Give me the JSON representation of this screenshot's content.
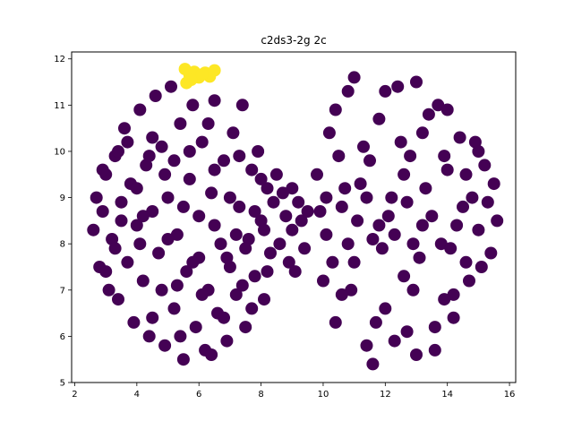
{
  "chart_data": {
    "type": "scatter",
    "title": "c2ds3-2g 2c",
    "xlabel": "",
    "ylabel": "",
    "xlim": [
      1.9,
      16.2
    ],
    "ylim": [
      5.0,
      12.15
    ],
    "xticks": [
      2,
      4,
      6,
      8,
      10,
      12,
      14,
      16
    ],
    "yticks": [
      5,
      6,
      7,
      8,
      9,
      10,
      11,
      12
    ],
    "grid": false,
    "legend": "none",
    "series": [
      {
        "color": "#440154",
        "points": [
          [
            2.6,
            8.3
          ],
          [
            2.7,
            9.0
          ],
          [
            2.8,
            7.5
          ],
          [
            2.9,
            8.7
          ],
          [
            3.0,
            9.5
          ],
          [
            3.1,
            7.0
          ],
          [
            3.2,
            8.1
          ],
          [
            3.3,
            9.9
          ],
          [
            3.4,
            6.8
          ],
          [
            3.5,
            8.9
          ],
          [
            3.6,
            10.5
          ],
          [
            3.7,
            7.6
          ],
          [
            3.8,
            9.3
          ],
          [
            3.9,
            6.3
          ],
          [
            4.0,
            8.4
          ],
          [
            4.1,
            10.9
          ],
          [
            4.2,
            7.2
          ],
          [
            4.3,
            9.7
          ],
          [
            4.4,
            6.0
          ],
          [
            4.5,
            8.7
          ],
          [
            4.6,
            11.2
          ],
          [
            4.7,
            7.8
          ],
          [
            4.8,
            10.1
          ],
          [
            4.9,
            5.8
          ],
          [
            5.0,
            9.0
          ],
          [
            5.1,
            11.4
          ],
          [
            5.2,
            6.6
          ],
          [
            5.3,
            8.2
          ],
          [
            5.4,
            10.6
          ],
          [
            5.5,
            5.5
          ],
          [
            5.6,
            7.4
          ],
          [
            5.7,
            9.4
          ],
          [
            5.8,
            11.0
          ],
          [
            5.9,
            6.2
          ],
          [
            6.0,
            8.6
          ],
          [
            6.1,
            10.2
          ],
          [
            6.2,
            5.7
          ],
          [
            6.3,
            7.0
          ],
          [
            6.4,
            9.1
          ],
          [
            6.5,
            11.1
          ],
          [
            6.6,
            6.5
          ],
          [
            6.7,
            8.0
          ],
          [
            6.8,
            9.8
          ],
          [
            6.9,
            5.9
          ],
          [
            7.0,
            7.5
          ],
          [
            7.1,
            10.4
          ],
          [
            7.2,
            6.9
          ],
          [
            7.3,
            8.8
          ],
          [
            7.4,
            11.0
          ],
          [
            7.5,
            6.2
          ],
          [
            7.6,
            8.1
          ],
          [
            7.7,
            9.6
          ],
          [
            7.8,
            7.3
          ],
          [
            7.9,
            10.0
          ],
          [
            8.0,
            8.5
          ],
          [
            8.1,
            6.8
          ],
          [
            8.2,
            9.2
          ],
          [
            8.3,
            7.8
          ],
          [
            8.4,
            8.9
          ],
          [
            8.5,
            9.5
          ],
          [
            2.9,
            9.6
          ],
          [
            3.3,
            7.9
          ],
          [
            3.7,
            10.2
          ],
          [
            4.1,
            8.0
          ],
          [
            4.5,
            6.4
          ],
          [
            4.9,
            9.5
          ],
          [
            5.3,
            7.1
          ],
          [
            5.7,
            10.0
          ],
          [
            6.1,
            6.9
          ],
          [
            6.5,
            9.6
          ],
          [
            6.9,
            7.7
          ],
          [
            7.3,
            9.9
          ],
          [
            7.7,
            6.6
          ],
          [
            8.1,
            8.3
          ],
          [
            3.0,
            7.4
          ],
          [
            3.5,
            8.5
          ],
          [
            4.0,
            9.2
          ],
          [
            4.5,
            10.3
          ],
          [
            5.0,
            8.1
          ],
          [
            5.5,
            8.8
          ],
          [
            6.0,
            7.7
          ],
          [
            6.5,
            8.4
          ],
          [
            7.0,
            9.0
          ],
          [
            7.5,
            7.9
          ],
          [
            8.0,
            9.4
          ],
          [
            4.2,
            8.6
          ],
          [
            4.8,
            7.0
          ],
          [
            5.2,
            9.8
          ],
          [
            5.8,
            7.6
          ],
          [
            6.3,
            10.6
          ],
          [
            6.8,
            6.4
          ],
          [
            7.2,
            8.2
          ],
          [
            7.8,
            8.7
          ],
          [
            3.4,
            10.0
          ],
          [
            4.4,
            9.9
          ],
          [
            5.4,
            6.0
          ],
          [
            6.4,
            5.6
          ],
          [
            7.4,
            7.1
          ],
          [
            8.2,
            7.4
          ],
          [
            8.6,
            8.0
          ],
          [
            8.8,
            8.6
          ],
          [
            9.0,
            8.3
          ],
          [
            9.2,
            8.9
          ],
          [
            9.4,
            7.9
          ],
          [
            9.0,
            9.2
          ],
          [
            8.9,
            7.6
          ],
          [
            9.3,
            8.5
          ],
          [
            8.7,
            9.1
          ],
          [
            9.5,
            8.7
          ],
          [
            9.1,
            7.4
          ],
          [
            9.8,
            9.5
          ],
          [
            10.0,
            7.2
          ],
          [
            10.2,
            10.4
          ],
          [
            10.4,
            6.3
          ],
          [
            10.6,
            8.8
          ],
          [
            10.8,
            11.3
          ],
          [
            11.0,
            7.6
          ],
          [
            11.2,
            9.3
          ],
          [
            11.4,
            5.8
          ],
          [
            11.6,
            8.1
          ],
          [
            11.8,
            10.7
          ],
          [
            12.0,
            6.6
          ],
          [
            12.2,
            9.0
          ],
          [
            12.4,
            11.4
          ],
          [
            12.6,
            7.3
          ],
          [
            12.8,
            9.9
          ],
          [
            13.0,
            5.6
          ],
          [
            13.2,
            8.4
          ],
          [
            13.4,
            10.8
          ],
          [
            13.6,
            6.2
          ],
          [
            13.8,
            8.0
          ],
          [
            14.0,
            9.6
          ],
          [
            14.2,
            6.9
          ],
          [
            14.4,
            10.3
          ],
          [
            14.6,
            7.6
          ],
          [
            14.8,
            9.0
          ],
          [
            15.0,
            8.3
          ],
          [
            15.2,
            9.7
          ],
          [
            15.4,
            7.8
          ],
          [
            15.6,
            8.5
          ],
          [
            10.1,
            8.2
          ],
          [
            10.5,
            9.9
          ],
          [
            10.9,
            7.0
          ],
          [
            11.3,
            10.1
          ],
          [
            11.7,
            6.3
          ],
          [
            12.1,
            8.6
          ],
          [
            12.5,
            10.2
          ],
          [
            12.9,
            7.0
          ],
          [
            13.3,
            9.2
          ],
          [
            13.7,
            11.0
          ],
          [
            14.1,
            7.9
          ],
          [
            14.5,
            8.8
          ],
          [
            14.9,
            10.2
          ],
          [
            15.3,
            8.9
          ],
          [
            10.3,
            7.6
          ],
          [
            10.7,
            9.2
          ],
          [
            11.1,
            8.5
          ],
          [
            11.5,
            9.8
          ],
          [
            11.9,
            7.9
          ],
          [
            12.3,
            8.2
          ],
          [
            12.7,
            8.9
          ],
          [
            13.1,
            7.7
          ],
          [
            13.5,
            8.6
          ],
          [
            13.9,
            9.9
          ],
          [
            14.3,
            8.4
          ],
          [
            14.7,
            7.2
          ],
          [
            15.1,
            7.5
          ],
          [
            10.4,
            10.9
          ],
          [
            11.0,
            11.6
          ],
          [
            12.0,
            11.3
          ],
          [
            13.0,
            11.5
          ],
          [
            14.0,
            10.9
          ],
          [
            11.6,
            5.4
          ],
          [
            12.7,
            6.1
          ],
          [
            13.6,
            5.7
          ],
          [
            14.2,
            6.4
          ],
          [
            10.6,
            6.9
          ],
          [
            12.3,
            5.9
          ],
          [
            13.9,
            6.8
          ],
          [
            15.5,
            9.3
          ],
          [
            9.9,
            8.7
          ],
          [
            10.1,
            9.0
          ],
          [
            11.4,
            9.0
          ],
          [
            12.6,
            9.5
          ],
          [
            13.2,
            10.4
          ],
          [
            14.6,
            9.5
          ],
          [
            15.0,
            10.0
          ],
          [
            10.8,
            8.0
          ],
          [
            11.8,
            8.4
          ],
          [
            12.9,
            8.0
          ]
        ]
      },
      {
        "color": "#fde725",
        "points": [
          [
            5.55,
            11.78
          ],
          [
            5.7,
            11.65
          ],
          [
            5.85,
            11.72
          ],
          [
            6.0,
            11.6
          ],
          [
            6.2,
            11.7
          ],
          [
            6.35,
            11.62
          ],
          [
            6.5,
            11.75
          ],
          [
            5.6,
            11.48
          ],
          [
            5.75,
            11.55
          ],
          [
            6.1,
            11.66
          ]
        ]
      }
    ]
  }
}
